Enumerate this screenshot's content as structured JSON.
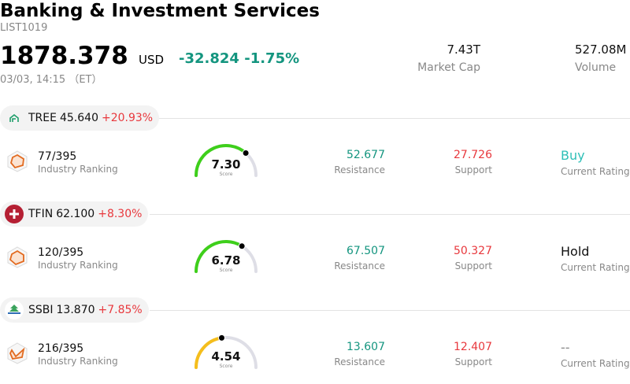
{
  "header": {
    "title": "Banking & Investment Services",
    "code": "LIST1019",
    "price": "1878.378",
    "currency": "USD",
    "change": "-32.824",
    "change_pct": "-1.75%",
    "time": "03/03, 14:15 （ET）",
    "market_cap_value": "7.43T",
    "market_cap_label": "Market Cap",
    "volume_value": "527.08M",
    "volume_label": "Volume"
  },
  "colors": {
    "up_green": "#14957f",
    "down_red": "#e8383d",
    "buy_teal": "#2ebfb7",
    "gauge_green": "#3ecf1b",
    "gauge_yellow": "#f5be1c",
    "gauge_track": "#dedee6"
  },
  "stocks": [
    {
      "symbol": "TREE",
      "price": "45.640",
      "change_pct": "+20.93%",
      "logo_icon": "lendingtree-icon",
      "rank": "77/395",
      "rank_label": "Industry Ranking",
      "score": "7.30",
      "score_fraction": 0.73,
      "score_label": "Score",
      "resistance": "52.677",
      "resistance_label": "Resistance",
      "support": "27.726",
      "support_label": "Support",
      "rating": "Buy",
      "rating_label": "Current Rating"
    },
    {
      "symbol": "TFIN",
      "price": "62.100",
      "change_pct": "+8.30%",
      "logo_icon": "triumph-cross-icon",
      "rank": "120/395",
      "rank_label": "Industry Ranking",
      "score": "6.78",
      "score_fraction": 0.678,
      "score_label": "Score",
      "resistance": "67.507",
      "resistance_label": "Resistance",
      "support": "50.327",
      "support_label": "Support",
      "rating": "Hold",
      "rating_label": "Current Rating"
    },
    {
      "symbol": "SSBI",
      "price": "13.870",
      "change_pct": "+7.85%",
      "logo_icon": "ssbi-tree-icon",
      "rank": "216/395",
      "rank_label": "Industry Ranking",
      "score": "4.54",
      "score_fraction": 0.454,
      "score_label": "Score",
      "resistance": "13.607",
      "resistance_label": "Resistance",
      "support": "12.407",
      "support_label": "Support",
      "rating": "--",
      "rating_label": "Current Rating"
    }
  ]
}
